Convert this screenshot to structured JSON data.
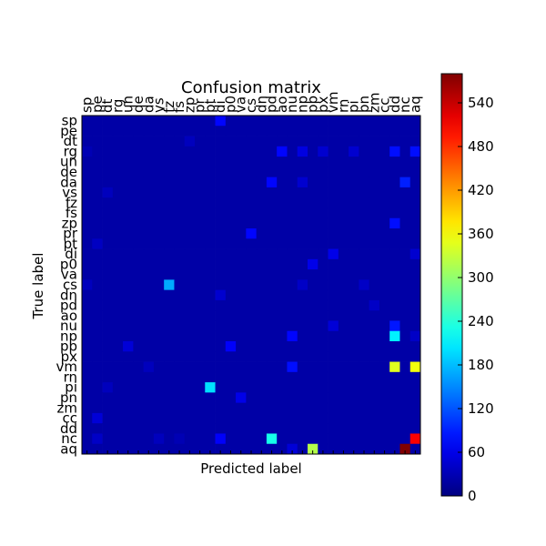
{
  "chart_data": {
    "type": "heatmap",
    "title": "Confusion matrix",
    "xlabel": "Predicted label",
    "ylabel": "True label",
    "labels": [
      "sp",
      "pe",
      "dt",
      "rg",
      "un",
      "de",
      "da",
      "vs",
      "fz",
      "fs",
      "zp",
      "pr",
      "pt",
      "di",
      "p0",
      "va",
      "cs",
      "dn",
      "pd",
      "ao",
      "nu",
      "np",
      "pp",
      "px",
      "vm",
      "rn",
      "pi",
      "pn",
      "zm",
      "cc",
      "dd",
      "nc",
      "aq"
    ],
    "colorbar": {
      "min": 0,
      "max": 580,
      "ticks": [
        0,
        60,
        120,
        180,
        240,
        300,
        360,
        420,
        480,
        540
      ]
    },
    "colormap": "jet",
    "background_value": 22,
    "cells": [
      {
        "row": "sp",
        "col": "di",
        "value": 75
      },
      {
        "row": "dt",
        "col": "zp",
        "value": 35
      },
      {
        "row": "rg",
        "col": "sp",
        "value": 30
      },
      {
        "row": "rg",
        "col": "ao",
        "value": 75
      },
      {
        "row": "rg",
        "col": "np",
        "value": 55
      },
      {
        "row": "rg",
        "col": "px",
        "value": 45
      },
      {
        "row": "rg",
        "col": "pi",
        "value": 45
      },
      {
        "row": "rg",
        "col": "dd",
        "value": 80
      },
      {
        "row": "rg",
        "col": "aq",
        "value": 80
      },
      {
        "row": "da",
        "col": "pd",
        "value": 75
      },
      {
        "row": "da",
        "col": "np",
        "value": 45
      },
      {
        "row": "da",
        "col": "nc",
        "value": 90
      },
      {
        "row": "vs",
        "col": "dt",
        "value": 35
      },
      {
        "row": "zp",
        "col": "dd",
        "value": 80
      },
      {
        "row": "pr",
        "col": "cs",
        "value": 75
      },
      {
        "row": "pt",
        "col": "pe",
        "value": 38
      },
      {
        "row": "di",
        "col": "vm",
        "value": 60
      },
      {
        "row": "di",
        "col": "aq",
        "value": 45
      },
      {
        "row": "p0",
        "col": "pp",
        "value": 60
      },
      {
        "row": "cs",
        "col": "sp",
        "value": 35
      },
      {
        "row": "cs",
        "col": "fz",
        "value": 170
      },
      {
        "row": "cs",
        "col": "np",
        "value": 40
      },
      {
        "row": "cs",
        "col": "pn",
        "value": 40
      },
      {
        "row": "dn",
        "col": "di",
        "value": 45
      },
      {
        "row": "pd",
        "col": "zm",
        "value": 40
      },
      {
        "row": "nu",
        "col": "vm",
        "value": 50
      },
      {
        "row": "nu",
        "col": "dd",
        "value": 85
      },
      {
        "row": "np",
        "col": "nu",
        "value": 75
      },
      {
        "row": "np",
        "col": "dd",
        "value": 210
      },
      {
        "row": "np",
        "col": "aq",
        "value": 40
      },
      {
        "row": "pp",
        "col": "un",
        "value": 50
      },
      {
        "row": "pp",
        "col": "p0",
        "value": 70
      },
      {
        "row": "vm",
        "col": "da",
        "value": 35
      },
      {
        "row": "vm",
        "col": "nu",
        "value": 80
      },
      {
        "row": "vm",
        "col": "dd",
        "value": 345
      },
      {
        "row": "vm",
        "col": "aq",
        "value": 355
      },
      {
        "row": "pi",
        "col": "dt",
        "value": 35
      },
      {
        "row": "pi",
        "col": "pt",
        "value": 200
      },
      {
        "row": "pn",
        "col": "va",
        "value": 60
      },
      {
        "row": "cc",
        "col": "pe",
        "value": 50
      },
      {
        "row": "nc",
        "col": "pe",
        "value": 40
      },
      {
        "row": "nc",
        "col": "vs",
        "value": 35
      },
      {
        "row": "nc",
        "col": "fs",
        "value": 30
      },
      {
        "row": "nc",
        "col": "di",
        "value": 70
      },
      {
        "row": "nc",
        "col": "pd",
        "value": 230
      },
      {
        "row": "nc",
        "col": "aq",
        "value": 510
      },
      {
        "row": "aq",
        "col": "nu",
        "value": 50
      },
      {
        "row": "aq",
        "col": "pp",
        "value": 320
      },
      {
        "row": "aq",
        "col": "nc",
        "value": 580
      }
    ]
  }
}
